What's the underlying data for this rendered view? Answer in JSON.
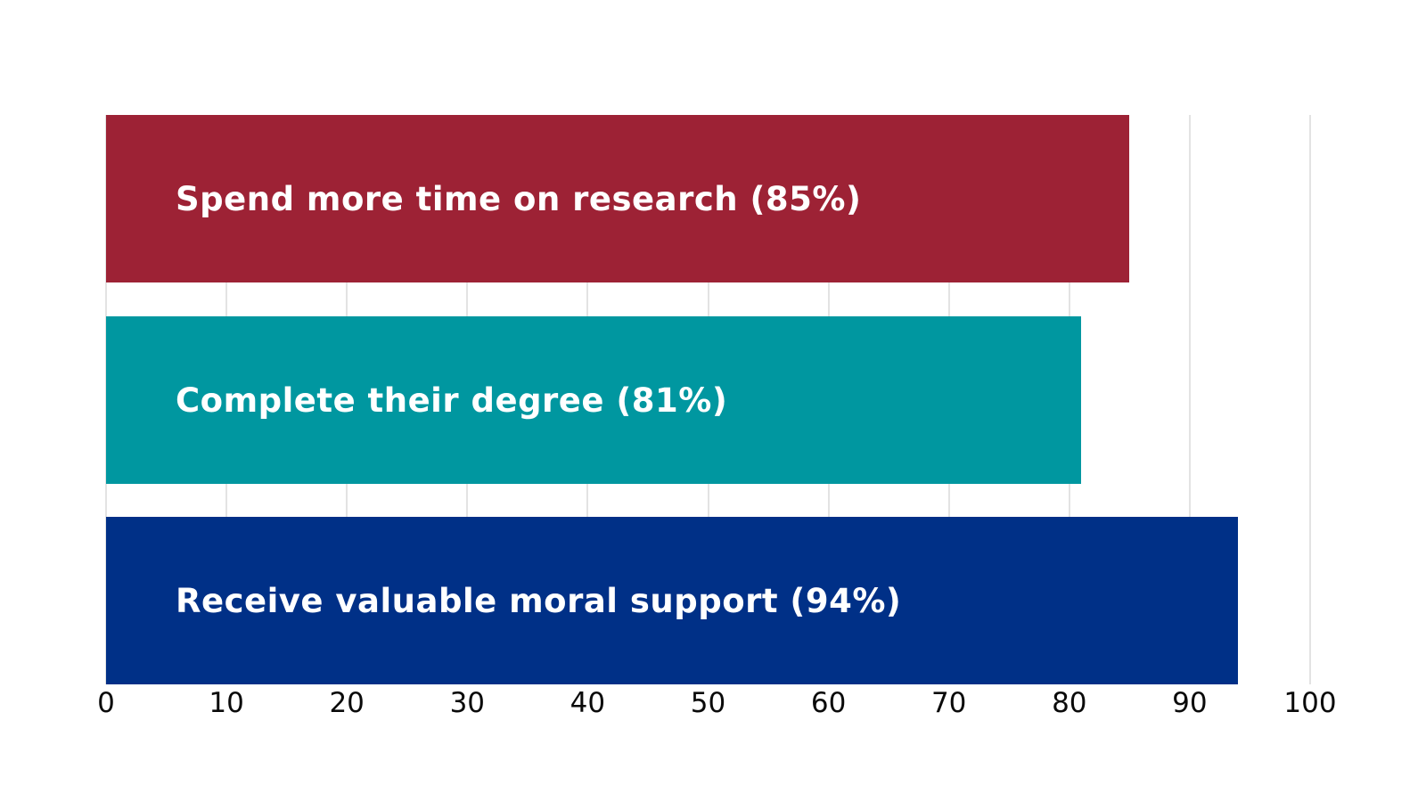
{
  "chart_data": {
    "type": "bar",
    "orientation": "horizontal",
    "title": "",
    "xlabel": "",
    "ylabel": "",
    "categories": [
      "Spend more time on research",
      "Complete their degree",
      "Receive valuable moral support"
    ],
    "values": [
      85,
      81,
      94
    ],
    "bars": [
      {
        "label": "Spend more time on research (85%)",
        "value": 85,
        "color": "#9D2235"
      },
      {
        "label": "Complete their degree (81%)",
        "value": 81,
        "color": "#0097A0"
      },
      {
        "label": "Receive valuable moral support (94%)",
        "value": 94,
        "color": "#003087"
      }
    ],
    "bar_label_text_color": "#FFFFFF",
    "xlim": [
      0,
      100
    ],
    "xticks": [
      0,
      10,
      20,
      30,
      40,
      50,
      60,
      70,
      80,
      90,
      100
    ],
    "grid": "vertical",
    "gridline_color": "#E3E3E3",
    "tick_label_color": "#0A0A0A",
    "background_color": "#FFFFFF",
    "legend": "none"
  }
}
